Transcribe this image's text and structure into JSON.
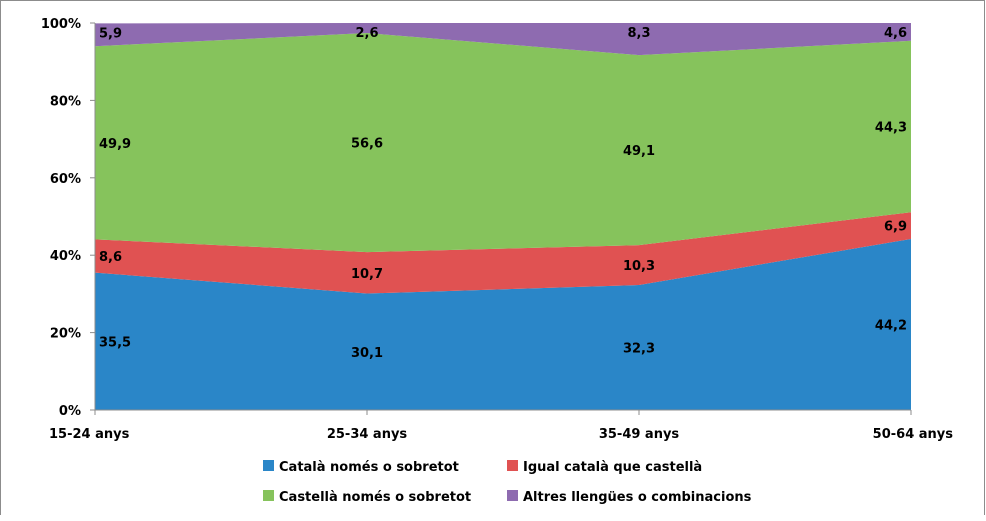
{
  "chart_data": {
    "type": "area",
    "stacked": "percent",
    "categories": [
      "15-24 anys",
      "25-34 anys",
      "35-49 anys",
      "50-64 anys"
    ],
    "series": [
      {
        "name": "Català només o sobretot",
        "values": [
          35.5,
          30.1,
          32.3,
          44.2
        ],
        "labels": [
          "35,5",
          "30,1",
          "32,3",
          "44,2"
        ],
        "color": "#2a86c8"
      },
      {
        "name": "Igual català que castellà",
        "values": [
          8.6,
          10.7,
          10.3,
          6.9
        ],
        "labels": [
          "8,6",
          "10,7",
          "10,3",
          "6,9"
        ],
        "color": "#e05252"
      },
      {
        "name": "Castellà només o sobretot",
        "values": [
          49.9,
          56.6,
          49.1,
          44.3
        ],
        "labels": [
          "49,9",
          "56,6",
          "49,1",
          "44,3"
        ],
        "color": "#86c35c"
      },
      {
        "name": "Altres llengües o combinacions",
        "values": [
          5.9,
          2.6,
          8.3,
          4.6
        ],
        "labels": [
          "5,9",
          "2,6",
          "8,3",
          "4,6"
        ],
        "color": "#8e6bb0"
      }
    ],
    "y_ticks": [
      "0%",
      "20%",
      "40%",
      "60%",
      "80%",
      "100%"
    ],
    "ylim": [
      0,
      100
    ],
    "grid": false,
    "legend_position": "bottom"
  }
}
